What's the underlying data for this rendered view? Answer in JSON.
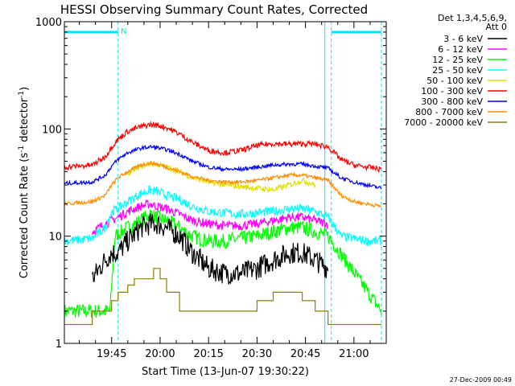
{
  "chart_data": {
    "type": "line",
    "title": "HESSI Observing Summary Count Rates, Corrected",
    "xlabel": "Start Time (13-Jun-07 19:30:22)",
    "ylabel_text": "Corrected Count Rate (s",
    "ylabel_sup1": "-1",
    "ylabel_mid": " detector",
    "ylabel_sup2": "-1",
    "ylabel_end": ")",
    "yscale": "log",
    "ylim": [
      1,
      1000
    ],
    "y_ticks": [
      {
        "v": 1,
        "label": "1"
      },
      {
        "v": 10,
        "label": "10"
      },
      {
        "v": 100,
        "label": "100"
      },
      {
        "v": 1000,
        "label": "1000"
      }
    ],
    "xlim": [
      "19:30:22",
      "21:10:00"
    ],
    "x_ticks": [
      {
        "t": "19:45",
        "label": "19:45"
      },
      {
        "t": "20:00",
        "label": "20:00"
      },
      {
        "t": "20:15",
        "label": "20:15"
      },
      {
        "t": "20:30",
        "label": "20:30"
      },
      {
        "t": "20:45",
        "label": "20:45"
      },
      {
        "t": "21:00",
        "label": "21:00"
      }
    ],
    "legend_header": [
      "Det 1,3,4,5,6,9,",
      "Att 0"
    ],
    "legend_position": "right",
    "footer_date": "27-Dec-2009 00:49",
    "night_marker": "N",
    "night_intervals": [
      {
        "start": "19:30:22",
        "end": "19:47:00"
      },
      {
        "start": "20:53:00",
        "end": "21:08:30"
      }
    ],
    "vertical_markers": [
      "19:47:00",
      "20:51:00",
      "20:53:00",
      "21:08:30"
    ],
    "night_level": 800,
    "series": [
      {
        "name": "3 - 6 keV",
        "color": "#000000",
        "noise": 0.12,
        "x": [
          "19:39:00",
          "19:43:00",
          "19:45:00",
          "19:47:00",
          "19:50:00",
          "19:54:00",
          "19:57:00",
          "19:59:00",
          "20:02:00",
          "20:06:00",
          "20:10:00",
          "20:15:00",
          "20:20:00",
          "20:25:00",
          "20:30:00",
          "20:35:00",
          "20:40:00",
          "20:44:00",
          "20:48:00",
          "20:52:00"
        ],
        "y": [
          4,
          6,
          7,
          7,
          9,
          12,
          13,
          13,
          12,
          10,
          7,
          5,
          4.5,
          4.5,
          5,
          6,
          7,
          7,
          6,
          5
        ]
      },
      {
        "name": "6 - 12 keV",
        "color": "#ff00ff",
        "noise": 0.05,
        "x": [
          "19:39:00",
          "19:43:00",
          "19:45:00",
          "19:47:00",
          "19:50:00",
          "19:54:00",
          "19:57:00",
          "19:59:00",
          "20:02:00",
          "20:06:00",
          "20:10:00",
          "20:15:00",
          "20:20:00",
          "20:25:00",
          "20:30:00",
          "20:35:00",
          "20:40:00",
          "20:44:00",
          "20:48:00",
          "20:52:00"
        ],
        "y": [
          11,
          13,
          14,
          15,
          17,
          19,
          20,
          19,
          18,
          16,
          14,
          13,
          12.5,
          12.5,
          13,
          14,
          15,
          15,
          14,
          13
        ]
      },
      {
        "name": "12 - 25 keV",
        "color": "#00ff00",
        "noise": 0.08,
        "x": [
          "19:30:22",
          "19:44:30",
          "19:46:00",
          "19:50:00",
          "19:54:00",
          "19:57:00",
          "19:59:00",
          "20:02:00",
          "20:06:00",
          "20:10:00",
          "20:15:00",
          "20:20:00",
          "20:25:00",
          "20:30:00",
          "20:35:00",
          "20:40:00",
          "20:44:00",
          "20:48:00",
          "20:52:00",
          "21:08:30"
        ],
        "y": [
          2,
          2,
          10,
          12,
          14,
          16,
          15,
          14,
          12,
          10,
          9,
          9,
          9.5,
          10,
          11,
          12,
          12,
          11,
          10,
          2
        ]
      },
      {
        "name": "25 - 50 keV",
        "color": "#00ffff",
        "noise": 0.05,
        "x": [
          "19:30:22",
          "19:39:00",
          "19:43:00",
          "19:45:00",
          "19:47:00",
          "19:50:00",
          "19:54:00",
          "19:57:00",
          "19:59:00",
          "20:02:00",
          "20:06:00",
          "20:10:00",
          "20:15:00",
          "20:20:00",
          "20:25:00",
          "20:30:00",
          "20:35:00",
          "20:40:00",
          "20:44:00",
          "20:48:00",
          "20:52:00",
          "20:56:00",
          "21:00:00",
          "21:04:00",
          "21:08:30"
        ],
        "y": [
          9,
          9.5,
          12,
          17,
          18,
          21,
          25,
          27,
          26,
          24,
          22,
          19,
          17,
          16.5,
          16,
          16.5,
          17,
          18,
          18,
          17,
          15,
          10,
          9.5,
          9,
          9
        ]
      },
      {
        "name": "50 - 100 keV",
        "color": "#e0e000",
        "noise": 0.03,
        "x": [
          "19:50:00",
          "19:54:00",
          "19:57:00",
          "19:59:00",
          "20:02:00",
          "20:06:00",
          "20:10:00",
          "20:15:00",
          "20:20:00",
          "20:25:00",
          "20:30:00",
          "20:35:00",
          "20:40:00",
          "20:44:00",
          "20:48:00"
        ],
        "y": [
          38,
          45,
          48,
          47,
          44,
          40,
          35,
          32,
          30,
          29,
          28,
          27,
          30,
          33,
          30
        ]
      },
      {
        "name": "100 - 300 keV",
        "color": "#ff0000",
        "noise": 0.03,
        "x": [
          "19:30:22",
          "19:39:00",
          "19:43:00",
          "19:45:00",
          "19:47:00",
          "19:50:00",
          "19:54:00",
          "19:57:00",
          "19:59:00",
          "20:02:00",
          "20:06:00",
          "20:10:00",
          "20:15:00",
          "20:20:00",
          "20:25:00",
          "20:30:00",
          "20:35:00",
          "20:40:00",
          "20:44:00",
          "20:48:00",
          "20:52:00",
          "20:56:00",
          "21:00:00",
          "21:04:00",
          "21:08:30"
        ],
        "y": [
          44,
          46,
          55,
          68,
          80,
          95,
          105,
          110,
          108,
          103,
          90,
          75,
          63,
          60,
          63,
          70,
          73,
          72,
          73,
          72,
          68,
          52,
          46,
          44,
          42
        ]
      },
      {
        "name": "300 - 800 keV",
        "color": "#0000ff",
        "noise": 0.02,
        "x": [
          "19:30:22",
          "19:39:00",
          "19:43:00",
          "19:45:00",
          "19:47:00",
          "19:50:00",
          "19:54:00",
          "19:57:00",
          "19:59:00",
          "20:02:00",
          "20:06:00",
          "20:10:00",
          "20:15:00",
          "20:20:00",
          "20:25:00",
          "20:30:00",
          "20:35:00",
          "20:40:00",
          "20:44:00",
          "20:48:00",
          "20:52:00",
          "20:56:00",
          "21:00:00",
          "21:04:00",
          "21:08:30"
        ],
        "y": [
          31,
          32,
          37,
          45,
          52,
          60,
          66,
          68,
          67,
          64,
          58,
          50,
          44,
          42,
          42,
          44,
          46,
          47,
          47,
          45,
          43,
          35,
          32,
          30,
          28
        ]
      },
      {
        "name": "800 - 7000 keV",
        "color": "#ff8c00",
        "noise": 0.02,
        "x": [
          "19:30:22",
          "19:39:00",
          "19:43:00",
          "19:45:00",
          "19:47:00",
          "19:50:00",
          "19:54:00",
          "19:57:00",
          "19:59:00",
          "20:02:00",
          "20:06:00",
          "20:10:00",
          "20:15:00",
          "20:20:00",
          "20:25:00",
          "20:30:00",
          "20:35:00",
          "20:40:00",
          "20:44:00",
          "20:48:00",
          "20:52:00",
          "20:56:00",
          "21:00:00",
          "21:04:00",
          "21:08:30"
        ],
        "y": [
          20,
          21,
          24,
          30,
          35,
          40,
          46,
          48,
          47,
          44,
          40,
          36,
          33,
          32,
          32,
          33,
          35,
          37,
          37,
          35,
          33,
          24,
          21,
          20,
          19
        ]
      },
      {
        "name": "7000 - 20000 keV",
        "color": "#8b8000",
        "noise": 0.0,
        "x": [
          "19:30:22",
          "19:39:00",
          "19:43:00",
          "19:45:00",
          "19:47:00",
          "19:50:00",
          "19:52:00",
          "19:55:00",
          "19:58:00",
          "20:00:00",
          "20:02:00",
          "20:06:00",
          "20:10:00",
          "20:15:00",
          "20:20:00",
          "20:25:00",
          "20:30:00",
          "20:35:00",
          "20:40:00",
          "20:44:00",
          "20:48:00",
          "20:52:00",
          "21:00:00",
          "21:08:30"
        ],
        "y": [
          1.5,
          2,
          2,
          2.5,
          3,
          3.5,
          4,
          4,
          5,
          4,
          3,
          2,
          2,
          2,
          2,
          2,
          2.5,
          3,
          3,
          2.5,
          2,
          1.5,
          1.5,
          1.5
        ]
      }
    ]
  }
}
